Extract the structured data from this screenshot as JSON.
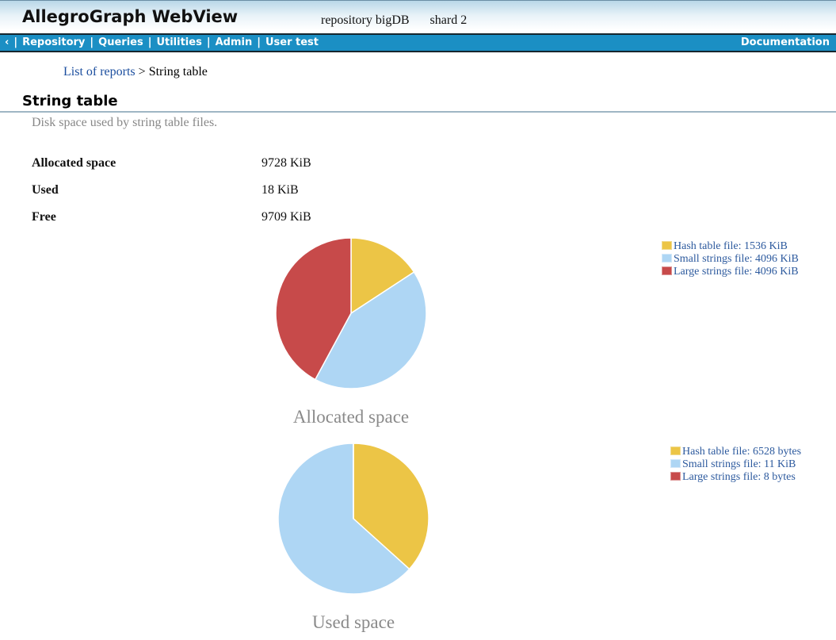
{
  "header": {
    "app_title": "AllegroGraph WebView",
    "repository_label": "repository bigDB",
    "shard_label": "shard 2"
  },
  "nav": {
    "back": "‹",
    "separator": "|",
    "items": [
      "Repository",
      "Queries",
      "Utilities",
      "Admin",
      "User test"
    ],
    "right_link": "Documentation"
  },
  "breadcrumb": {
    "parent": "List of reports",
    "separator": ">",
    "current": "String table"
  },
  "page": {
    "title": "String table",
    "subtitle": "Disk space used by string table files."
  },
  "stats": {
    "rows": [
      {
        "label": "Allocated space",
        "value": "9728 KiB"
      },
      {
        "label": "Used",
        "value": "18 KiB"
      },
      {
        "label": "Free",
        "value": "9709 KiB"
      }
    ]
  },
  "colors": {
    "navbar_bg": "#1b8fc4",
    "header_gradient_top": "#b9d7e8",
    "legend_text": "#2d5a9e",
    "link": "#1a4d9e",
    "caption_gray": "#8a8a8a",
    "slice_yellow": "#ecc546",
    "slice_blue": "#aed6f4",
    "slice_red": "#c74a4a"
  },
  "chart_data": [
    {
      "type": "pie",
      "title": "Allocated space",
      "legend_position": "right",
      "total": 9728,
      "unit": "KiB",
      "slices": [
        {
          "name": "Hash table file",
          "label": "Hash table file: 1536 KiB",
          "value": 1536,
          "color": "#ecc546",
          "border": "#f0da8e"
        },
        {
          "name": "Small strings file",
          "label": "Small strings file: 4096 KiB",
          "value": 4096,
          "color": "#aed6f4",
          "border": "#d3e8f9"
        },
        {
          "name": "Large strings file",
          "label": "Large strings file: 4096 KiB",
          "value": 4096,
          "color": "#c74a4a",
          "border": "#dd9494"
        }
      ]
    },
    {
      "type": "pie",
      "title": "Used space",
      "legend_position": "right",
      "total": 17800,
      "unit": "bytes",
      "slices": [
        {
          "name": "Hash table file",
          "label": "Hash table file: 6528 bytes",
          "value": 6528,
          "color": "#ecc546",
          "border": "#f0da8e"
        },
        {
          "name": "Small strings file",
          "label": "Small strings file: 11 KiB",
          "value": 11264,
          "color": "#aed6f4",
          "border": "#d3e8f9"
        },
        {
          "name": "Large strings file",
          "label": "Large strings file: 8 bytes",
          "value": 8,
          "color": "#c74a4a",
          "border": "#dd9494"
        }
      ]
    }
  ]
}
